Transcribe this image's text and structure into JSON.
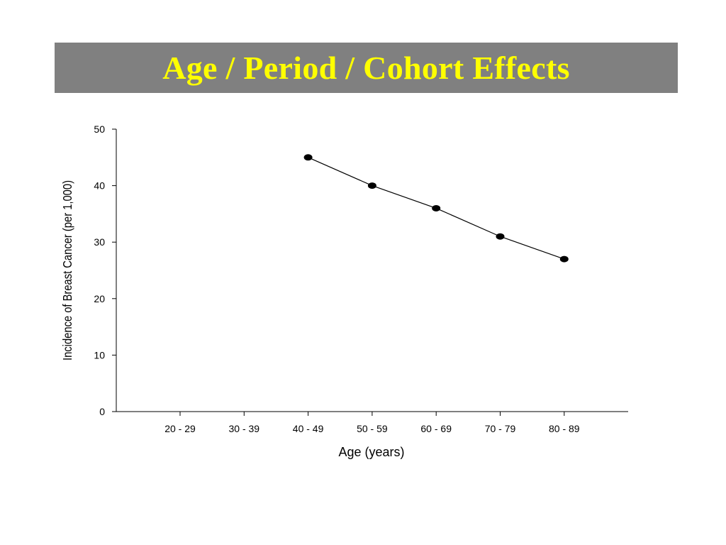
{
  "slide": {
    "title": "Age / Period / Cohort Effects",
    "title_bg": "#808080",
    "title_color": "#ffff00"
  },
  "chart_data": {
    "type": "line",
    "title": "",
    "xlabel": "Age (years)",
    "ylabel": "Incidence of Breast Cancer (per 1,000)",
    "categories": [
      "20 - 29",
      "30 - 39",
      "40 - 49",
      "50 - 59",
      "60 - 69",
      "70 - 79",
      "80 - 89"
    ],
    "series": [
      {
        "values": [
          null,
          null,
          45,
          40,
          36,
          31,
          27
        ]
      }
    ],
    "ylim": [
      0,
      50
    ],
    "yticks": [
      0,
      10,
      20,
      30,
      40,
      50
    ],
    "grid": false,
    "legend": "none",
    "line_color": "#000000"
  }
}
